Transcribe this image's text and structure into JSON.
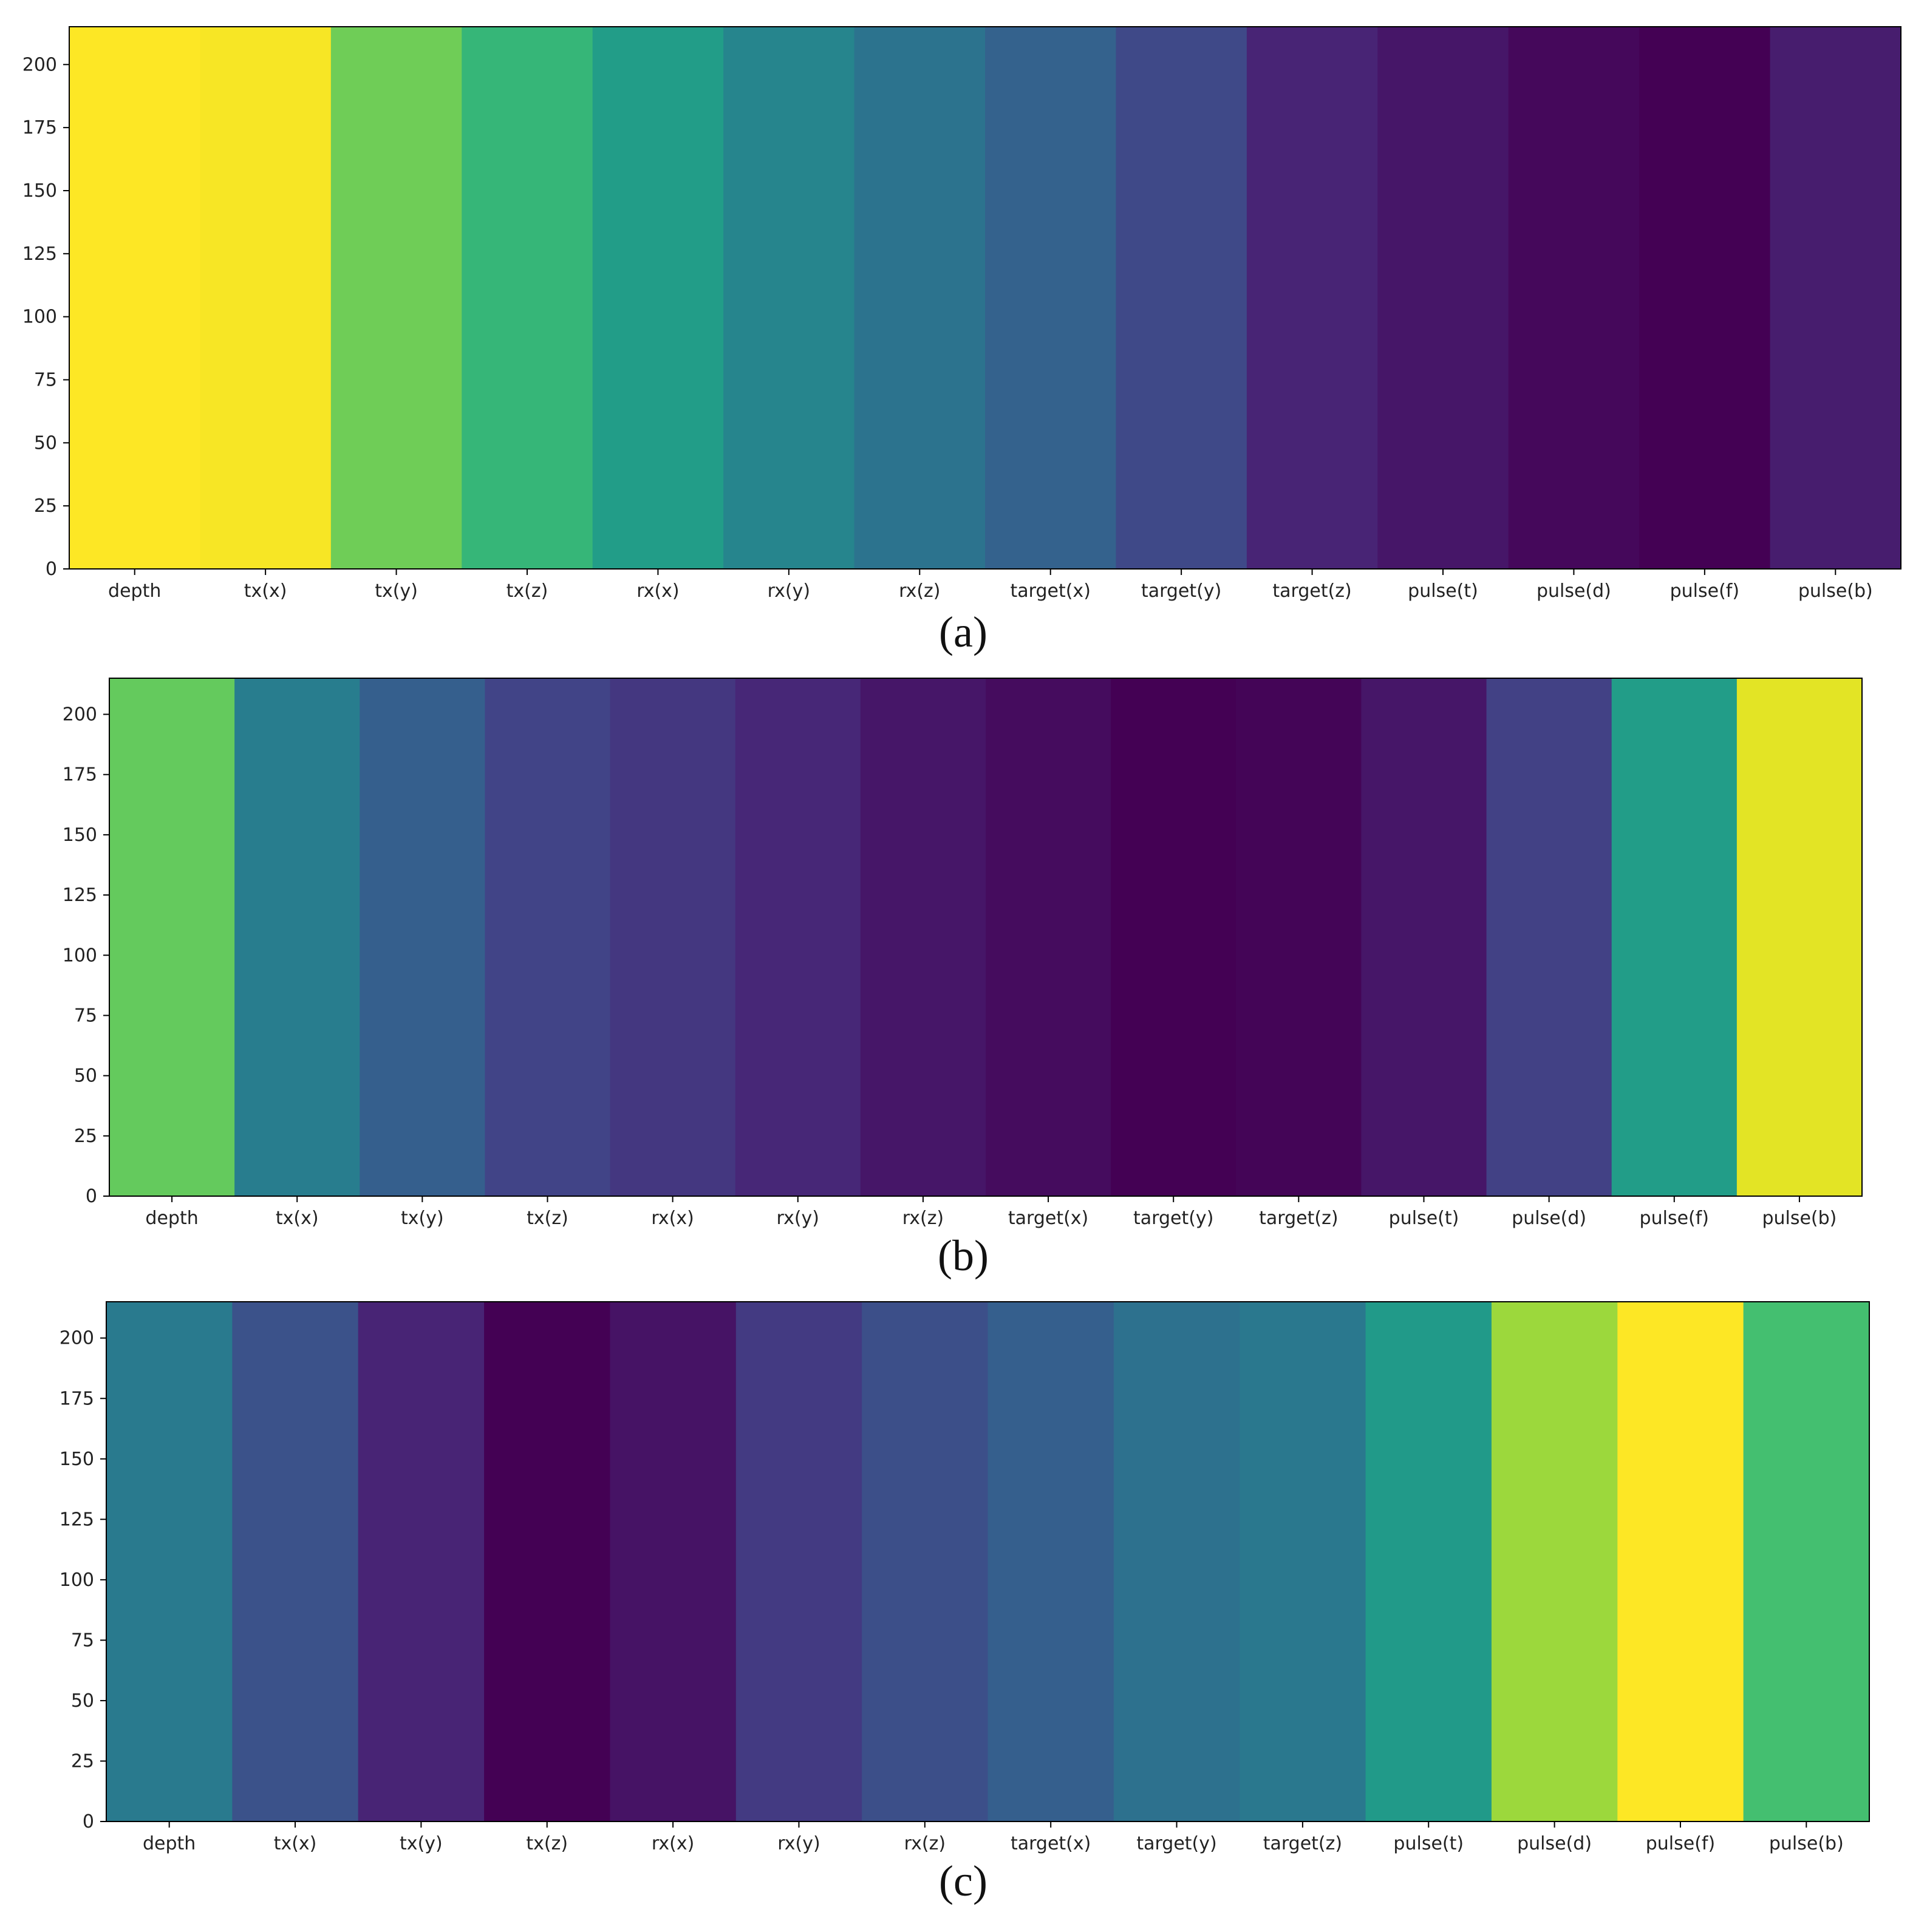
{
  "colors": {
    "colormap": "viridis",
    "axis": "#000000",
    "text": "#222222"
  },
  "chart_data": [
    {
      "type": "heatmap",
      "panel_label": "(a)",
      "columns": [
        "depth",
        "tx(x)",
        "tx(y)",
        "tx(z)",
        "rx(x)",
        "rx(y)",
        "rx(z)",
        "target(x)",
        "target(y)",
        "target(z)",
        "pulse(t)",
        "pulse(d)",
        "pulse(f)",
        "pulse(b)"
      ],
      "column_levels": [
        1.0,
        0.99,
        0.78,
        0.66,
        0.55,
        0.45,
        0.38,
        0.31,
        0.22,
        0.1,
        0.06,
        0.02,
        0.0,
        0.08
      ],
      "ylim": [
        0,
        215
      ],
      "yticks": [
        0,
        25,
        50,
        75,
        100,
        125,
        150,
        175,
        200
      ],
      "colormap": "viridis"
    },
    {
      "type": "heatmap",
      "panel_label": "(b)",
      "columns": [
        "depth",
        "tx(x)",
        "tx(y)",
        "tx(z)",
        "rx(x)",
        "rx(y)",
        "rx(z)",
        "target(x)",
        "target(y)",
        "target(z)",
        "pulse(t)",
        "pulse(d)",
        "pulse(f)",
        "pulse(b)"
      ],
      "column_levels": [
        0.76,
        0.42,
        0.3,
        0.2,
        0.16,
        0.11,
        0.06,
        0.03,
        0.0,
        0.01,
        0.06,
        0.19,
        0.55,
        0.96
      ],
      "ylim": [
        0,
        215
      ],
      "yticks": [
        0,
        25,
        50,
        75,
        100,
        125,
        150,
        175,
        200
      ],
      "colormap": "viridis"
    },
    {
      "type": "heatmap",
      "panel_label": "(c)",
      "columns": [
        "depth",
        "tx(x)",
        "tx(y)",
        "tx(z)",
        "rx(x)",
        "rx(y)",
        "rx(z)",
        "target(x)",
        "target(y)",
        "target(z)",
        "pulse(t)",
        "pulse(d)",
        "pulse(f)",
        "pulse(b)"
      ],
      "column_levels": [
        0.41,
        0.25,
        0.1,
        0.0,
        0.05,
        0.17,
        0.24,
        0.3,
        0.37,
        0.4,
        0.54,
        0.85,
        1.0,
        0.7
      ],
      "ylim": [
        0,
        215
      ],
      "yticks": [
        0,
        25,
        50,
        75,
        100,
        125,
        150,
        175,
        200
      ],
      "colormap": "viridis"
    }
  ]
}
